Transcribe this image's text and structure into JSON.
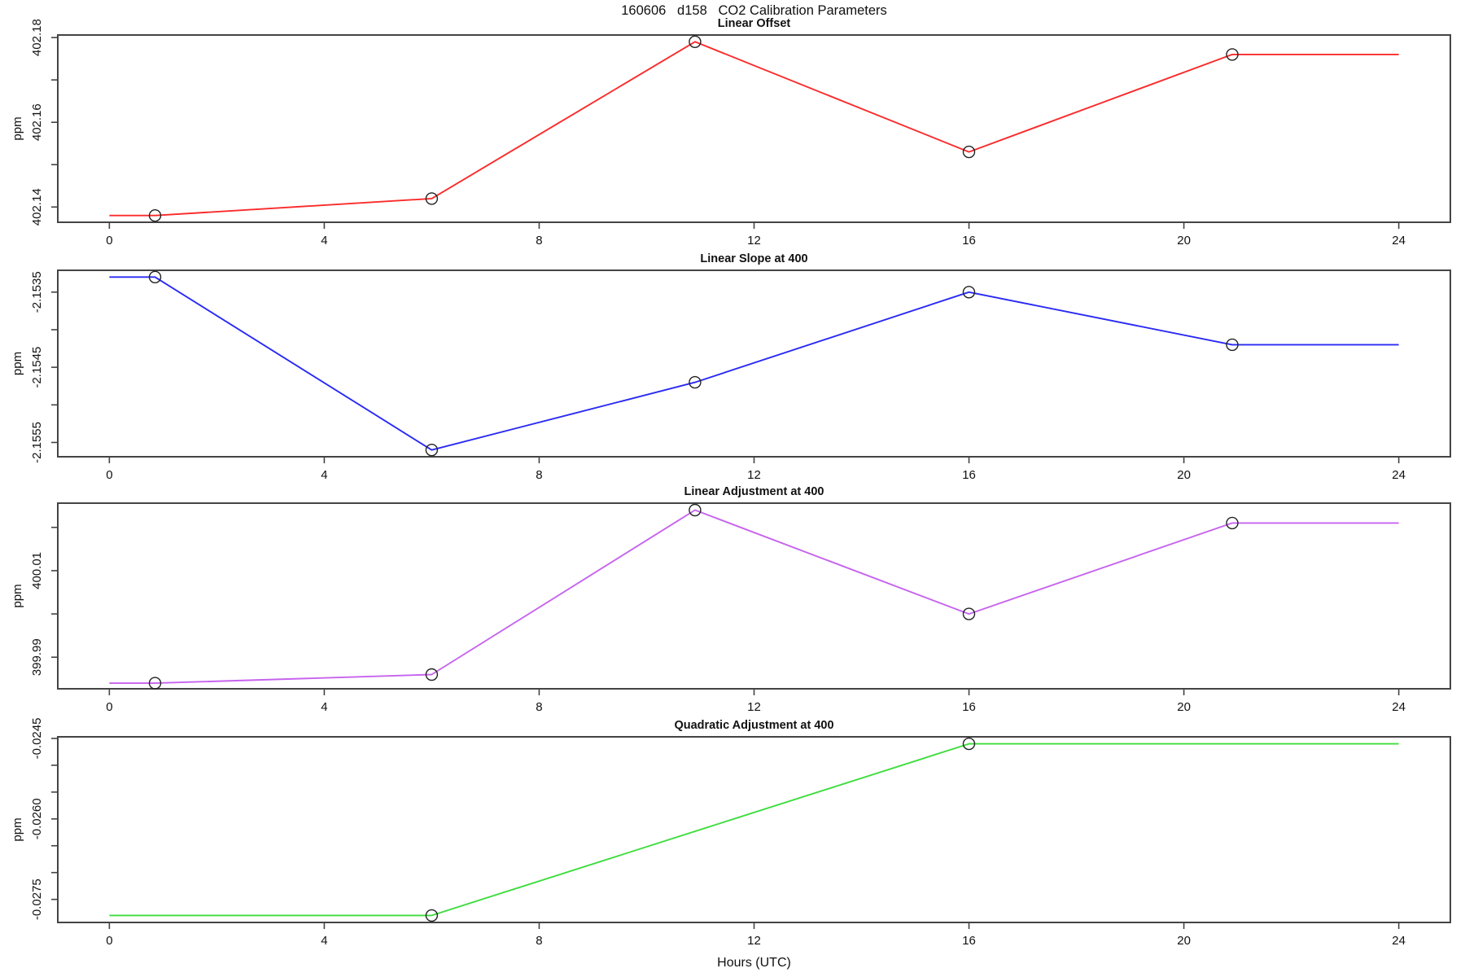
{
  "figure": {
    "kind": "r-base-multipanel-plot"
  },
  "chart_data": {
    "type": "line",
    "title": "160606   d158   CO2 Calibration Parameters",
    "xlabel": "Hours (UTC)",
    "xlim": [
      -0.96,
      24.96
    ],
    "x_ticks": [
      0,
      4,
      8,
      12,
      16,
      20,
      24
    ],
    "x_tick_labels": [
      "0",
      "4",
      "8",
      "12",
      "16",
      "20",
      "24"
    ],
    "grid": false,
    "legend": "none",
    "marker": "open-circle",
    "axis_color": "#444444",
    "panels": [
      {
        "title": "Linear Offset",
        "ylabel": "ppm",
        "color": "#fb2b2b",
        "ylim": [
          402.1364,
          402.1806
        ],
        "y_ticks": [
          {
            "value": 402.14,
            "label": "402.14"
          },
          {
            "value": 402.15,
            "label": ""
          },
          {
            "value": 402.16,
            "label": "402.16"
          },
          {
            "value": 402.17,
            "label": ""
          },
          {
            "value": 402.18,
            "label": "402.18"
          }
        ],
        "line_points": [
          [
            0,
            402.138
          ],
          [
            0.85,
            402.138
          ],
          [
            6,
            402.142
          ],
          [
            10.9,
            402.179
          ],
          [
            16,
            402.153
          ],
          [
            20.9,
            402.176
          ],
          [
            24,
            402.176
          ]
        ],
        "markers": [
          [
            0.85,
            402.138
          ],
          [
            6,
            402.142
          ],
          [
            10.9,
            402.179
          ],
          [
            16,
            402.153
          ],
          [
            20.9,
            402.176
          ]
        ]
      },
      {
        "title": "Linear Slope at 400",
        "ylabel": "ppm",
        "color": "#2a2af5",
        "ylim": [
          -2.15569,
          -2.15321
        ],
        "y_ticks": [
          {
            "value": -2.1555,
            "label": "-2.1555"
          },
          {
            "value": -2.155,
            "label": ""
          },
          {
            "value": -2.1545,
            "label": "-2.1545"
          },
          {
            "value": -2.154,
            "label": ""
          },
          {
            "value": -2.1535,
            "label": "-2.1535"
          }
        ],
        "line_points": [
          [
            0,
            -2.1533
          ],
          [
            0.85,
            -2.1533
          ],
          [
            6,
            -2.1556
          ],
          [
            10.9,
            -2.1547
          ],
          [
            16,
            -2.1535
          ],
          [
            20.9,
            -2.1542
          ],
          [
            24,
            -2.1542
          ]
        ],
        "markers": [
          [
            0.85,
            -2.1533
          ],
          [
            6,
            -2.1556
          ],
          [
            10.9,
            -2.1547
          ],
          [
            16,
            -2.1535
          ],
          [
            20.9,
            -2.1542
          ]
        ]
      },
      {
        "title": "Linear Adjustment at 400",
        "ylabel": "ppm",
        "color": "#c763ee",
        "ylim": [
          399.9827,
          400.0256
        ],
        "y_ticks": [
          {
            "value": 399.99,
            "label": "399.99"
          },
          {
            "value": 400.0,
            "label": ""
          },
          {
            "value": 400.01,
            "label": "400.01"
          },
          {
            "value": 400.02,
            "label": ""
          }
        ],
        "line_points": [
          [
            0,
            399.984
          ],
          [
            0.85,
            399.984
          ],
          [
            6,
            399.986
          ],
          [
            10.9,
            400.024
          ],
          [
            16,
            400.0
          ],
          [
            20.9,
            400.021
          ],
          [
            24,
            400.021
          ]
        ],
        "markers": [
          [
            0.85,
            399.984
          ],
          [
            6,
            399.986
          ],
          [
            10.9,
            400.024
          ],
          [
            16,
            400.0
          ],
          [
            20.9,
            400.021
          ]
        ]
      },
      {
        "title": "Quadratic Adjustment at 400",
        "ylabel": "ppm",
        "color": "#3ddd3d",
        "ylim": [
          -0.02793,
          -0.02447
        ],
        "y_ticks": [
          {
            "value": -0.0275,
            "label": "-0.0275"
          },
          {
            "value": -0.027,
            "label": ""
          },
          {
            "value": -0.0265,
            "label": ""
          },
          {
            "value": -0.026,
            "label": "-0.0260"
          },
          {
            "value": -0.0255,
            "label": ""
          },
          {
            "value": -0.025,
            "label": ""
          },
          {
            "value": -0.0245,
            "label": "-0.0245"
          }
        ],
        "line_points": [
          [
            0,
            -0.0278
          ],
          [
            6,
            -0.0278
          ],
          [
            16,
            -0.0246
          ],
          [
            24,
            -0.0246
          ]
        ],
        "markers": [
          [
            6,
            -0.0278
          ],
          [
            16,
            -0.0246
          ]
        ]
      }
    ]
  }
}
